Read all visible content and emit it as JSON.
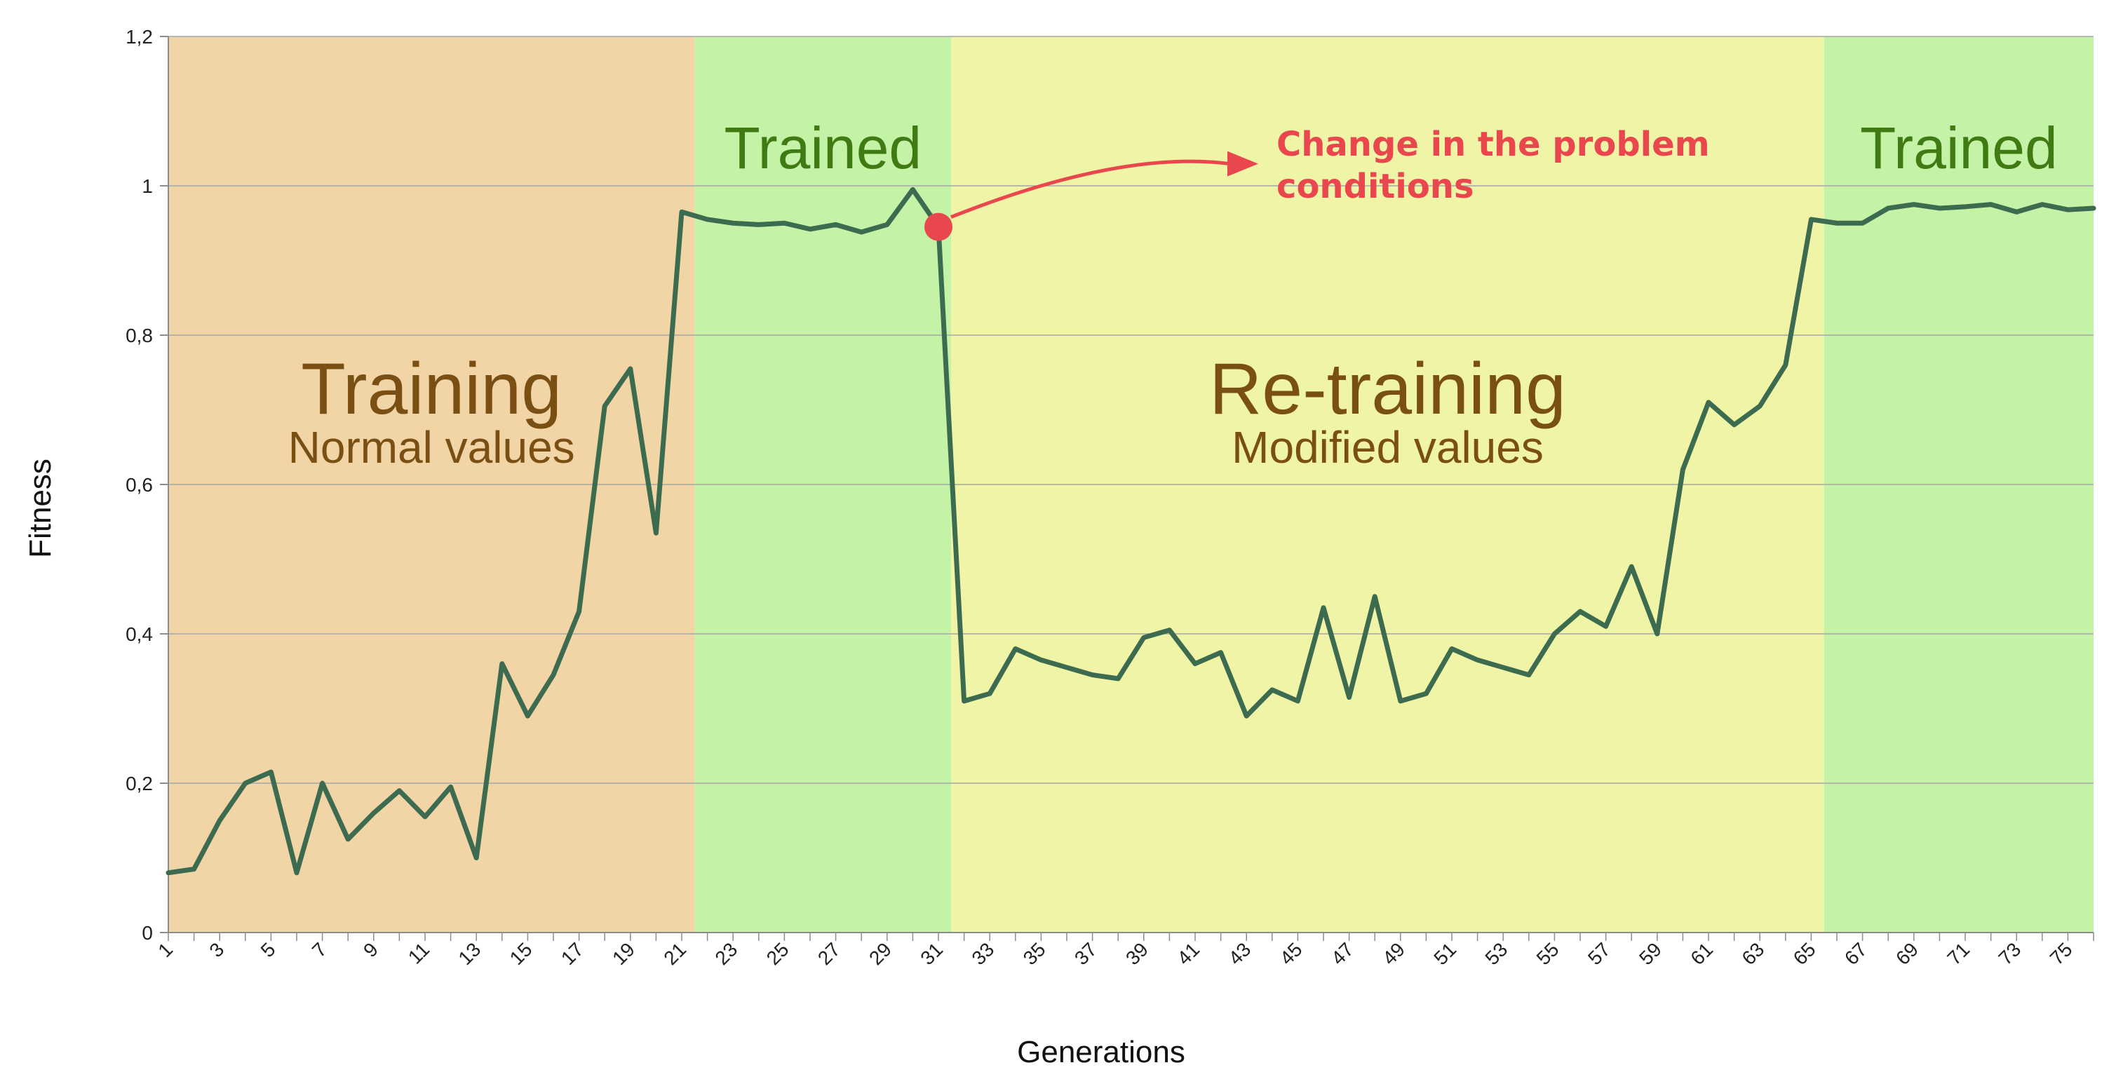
{
  "chart_data": {
    "type": "line",
    "title": "",
    "xlabel": "Generations",
    "ylabel": "Fitness",
    "xlim": [
      1,
      76
    ],
    "ylim": [
      0,
      1.2
    ],
    "y_ticks": [
      0,
      0.2,
      0.4,
      0.6,
      0.8,
      1,
      1.2
    ],
    "y_tick_labels": [
      "0",
      "0,2",
      "0,4",
      "0,6",
      "0,8",
      "1",
      "1,2"
    ],
    "x_tick_labels": [
      "1",
      "3",
      "5",
      "7",
      "9",
      "11",
      "13",
      "15",
      "17",
      "19",
      "21",
      "23",
      "25",
      "27",
      "29",
      "31",
      "33",
      "35",
      "37",
      "39",
      "41",
      "43",
      "45",
      "47",
      "49",
      "51",
      "53",
      "55",
      "57",
      "59",
      "61",
      "63",
      "65",
      "67",
      "69",
      "71",
      "73",
      "75"
    ],
    "grid": "horizontal",
    "line_color": "#3d6b50",
    "series": [
      {
        "x": [
          1,
          2,
          3,
          4,
          5,
          6,
          7,
          8,
          9,
          10,
          11,
          12,
          13,
          14,
          15,
          16,
          17,
          18,
          19,
          20,
          21,
          22,
          23,
          24,
          25,
          26,
          27,
          28,
          29,
          30,
          31,
          32,
          33,
          34,
          35,
          36,
          37,
          38,
          39,
          40,
          41,
          42,
          43,
          44,
          45,
          46,
          47,
          48,
          49,
          50,
          51,
          52,
          53,
          54,
          55,
          56,
          57,
          58,
          59,
          60,
          61,
          62,
          63,
          64,
          65,
          66,
          67,
          68,
          69,
          70,
          71,
          72,
          73,
          74,
          75,
          76
        ],
        "values": [
          0.08,
          0.085,
          0.15,
          0.2,
          0.215,
          0.08,
          0.2,
          0.125,
          0.16,
          0.19,
          0.155,
          0.195,
          0.1,
          0.36,
          0.29,
          0.345,
          0.43,
          0.705,
          0.755,
          0.535,
          0.965,
          0.955,
          0.95,
          0.948,
          0.95,
          0.942,
          0.948,
          0.938,
          0.948,
          0.995,
          0.945,
          0.31,
          0.32,
          0.38,
          0.365,
          0.355,
          0.345,
          0.34,
          0.395,
          0.405,
          0.36,
          0.375,
          0.29,
          0.325,
          0.31,
          0.435,
          0.315,
          0.45,
          0.31,
          0.32,
          0.38,
          0.365,
          0.355,
          0.345,
          0.4,
          0.43,
          0.41,
          0.49,
          0.4,
          0.62,
          0.71,
          0.68,
          0.705,
          0.76,
          0.955,
          0.95,
          0.95,
          0.97,
          0.975,
          0.97,
          0.972,
          0.975,
          0.965,
          0.975,
          0.968,
          0.97
        ]
      }
    ],
    "regions": [
      {
        "from": 1,
        "to": 21.5,
        "color": "#f2d5a6",
        "title": "Training",
        "subtitle": "Normal values",
        "text_color": "#7a4f14"
      },
      {
        "from": 21.5,
        "to": 31.5,
        "color": "#c4f2a6",
        "title": "Trained",
        "subtitle": "",
        "text_color": "#3f7a12"
      },
      {
        "from": 31.5,
        "to": 65.5,
        "color": "#f0f4a6",
        "title": "Re-training",
        "subtitle": "Modified values",
        "text_color": "#7a4f14"
      },
      {
        "from": 65.5,
        "to": 76,
        "color": "#c4f2a6",
        "title": "Trained",
        "subtitle": "",
        "text_color": "#3f7a12"
      }
    ],
    "annotation": {
      "line1": "Change in the problem",
      "line2": "conditions",
      "color": "#e8474d",
      "point_x": 31,
      "point_y": 0.945
    }
  }
}
